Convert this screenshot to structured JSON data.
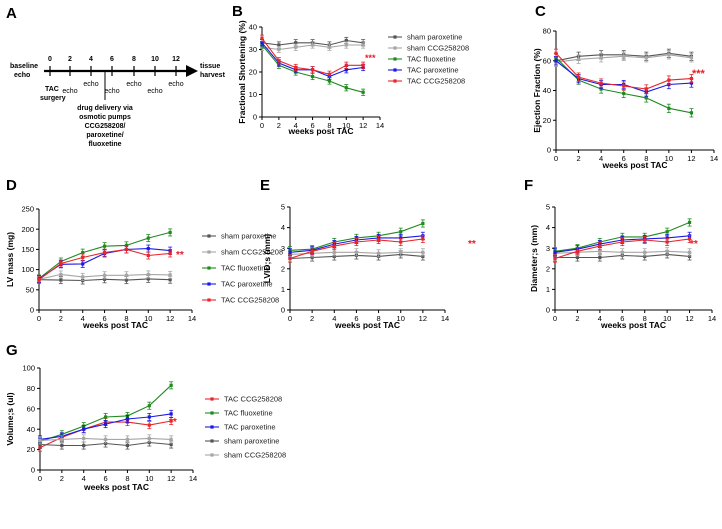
{
  "colors": {
    "sham_paroxetine": "#555555",
    "sham_CCG258208": "#a6a6a6",
    "TAC_fluoxetine": "#1f8a1f",
    "TAC_paroxetine": "#1a1ae6",
    "TAC_CCG258208": "#e8262b",
    "stars": "#e21f26"
  },
  "timeline": {
    "letter": "A",
    "start_label_line1": "baseline",
    "start_label_line2": "echo",
    "end_label_line1": "tissue",
    "end_label_line2": "harvest",
    "weeks": [
      "0",
      "2",
      "4",
      "6",
      "8",
      "10",
      "12"
    ],
    "tac_label_line1": "TAC",
    "tac_label_line2": "surgery",
    "echo_label": "echo",
    "drug_line1": "drug delivery via",
    "drug_line2": "osmotic pumps",
    "drug_line3": "CCG258208/",
    "drug_line4": "paroxetine/",
    "drug_line5": "fluoxetine"
  },
  "chart_data": [
    {
      "panel": "B",
      "type": "line",
      "ylabel": "Fractional Shortening (%)",
      "xlabel": "weeks post TAC",
      "x": [
        0,
        2,
        4,
        6,
        8,
        10,
        12
      ],
      "xticks": [
        "0",
        "2",
        "4",
        "6",
        "8",
        "10",
        "12",
        "14"
      ],
      "xlim": [
        0,
        14
      ],
      "ylim": [
        0,
        40
      ],
      "yticks": [
        "0",
        "10",
        "20",
        "30",
        "40"
      ],
      "stars": "***",
      "legend_position": "right",
      "series": [
        {
          "name": "sham paroxetine",
          "key": "sham_paroxetine",
          "values": [
            33,
            32,
            33,
            33,
            32,
            34,
            33
          ]
        },
        {
          "name": "sham CCG258208",
          "key": "sham_CCG258208",
          "values": [
            31,
            30,
            31,
            32,
            31,
            32,
            32
          ]
        },
        {
          "name": "TAC fluoxetine",
          "key": "TAC_fluoxetine",
          "values": [
            32,
            23,
            20,
            18,
            16,
            13,
            11
          ]
        },
        {
          "name": "TAC paroxetine",
          "key": "TAC_paroxetine",
          "values": [
            33,
            24,
            21,
            21,
            18,
            21,
            22
          ]
        },
        {
          "name": "TAC CCG258208",
          "key": "TAC_CCG258208",
          "values": [
            35,
            25,
            22,
            21,
            19,
            23,
            23
          ]
        }
      ]
    },
    {
      "panel": "C",
      "type": "line",
      "ylabel": "Ejection Fraction (%)",
      "xlabel": "weeks post TAC",
      "x": [
        0,
        2,
        4,
        6,
        8,
        10,
        12
      ],
      "xticks": [
        "0",
        "2",
        "4",
        "6",
        "8",
        "10",
        "12",
        "14"
      ],
      "xlim": [
        0,
        14
      ],
      "ylim": [
        0,
        80
      ],
      "yticks": [
        "0",
        "20",
        "40",
        "60",
        "80"
      ],
      "stars": "***",
      "legend_position": "none",
      "series": [
        {
          "name": "sham paroxetine",
          "key": "sham_paroxetine",
          "values": [
            60,
            63,
            64,
            64,
            63,
            65,
            63
          ]
        },
        {
          "name": "sham CCG258208",
          "key": "sham_CCG258208",
          "values": [
            59,
            61,
            62,
            63,
            62,
            64,
            62
          ]
        },
        {
          "name": "TAC fluoxetine",
          "key": "TAC_fluoxetine",
          "values": [
            62,
            47,
            41,
            38,
            35,
            28,
            25
          ]
        },
        {
          "name": "TAC paroxetine",
          "key": "TAC_paroxetine",
          "values": [
            60,
            48,
            44,
            44,
            39,
            44,
            45
          ]
        },
        {
          "name": "TAC CCG258208",
          "key": "TAC_CCG258208",
          "values": [
            65,
            49,
            45,
            43,
            41,
            47,
            48
          ]
        }
      ]
    },
    {
      "panel": "D",
      "type": "line",
      "ylabel": "LV mass (mg)",
      "xlabel": "weeks post TAC",
      "x": [
        0,
        2,
        4,
        6,
        8,
        10,
        12
      ],
      "xticks": [
        "0",
        "2",
        "4",
        "6",
        "8",
        "10",
        "12",
        "14"
      ],
      "xlim": [
        0,
        14
      ],
      "ylim": [
        0,
        250
      ],
      "yticks": [
        "0",
        "50",
        "100",
        "150",
        "200",
        "250"
      ],
      "stars": "**",
      "legend_position": "right",
      "series": [
        {
          "name": "sham paroxetine",
          "key": "sham_paroxetine",
          "values": [
            75,
            74,
            73,
            76,
            74,
            77,
            75
          ]
        },
        {
          "name": "sham CCG258208",
          "key": "sham_CCG258208",
          "values": [
            76,
            88,
            82,
            86,
            86,
            88,
            87
          ]
        },
        {
          "name": "TAC fluoxetine",
          "key": "TAC_fluoxetine",
          "values": [
            78,
            120,
            142,
            158,
            160,
            178,
            192
          ]
        },
        {
          "name": "TAC paroxetine",
          "key": "TAC_paroxetine",
          "values": [
            77,
            113,
            114,
            140,
            150,
            152,
            147
          ]
        },
        {
          "name": "TAC CCG258208",
          "key": "TAC_CCG258208",
          "values": [
            75,
            115,
            130,
            142,
            150,
            135,
            140
          ]
        }
      ]
    },
    {
      "panel": "E",
      "type": "line",
      "ylabel": "LVID;s (mm)",
      "xlabel": "weeks post TAC",
      "x": [
        0,
        2,
        4,
        6,
        8,
        10,
        12
      ],
      "xticks": [
        "0",
        "2",
        "4",
        "6",
        "8",
        "10",
        "12",
        "14"
      ],
      "xlim": [
        0,
        14
      ],
      "ylim": [
        0,
        5
      ],
      "yticks": [
        "0",
        "1",
        "2",
        "3",
        "4",
        "5"
      ],
      "stars": "**",
      "legend_position": "none",
      "series": [
        {
          "name": "sham paroxetine",
          "key": "sham_paroxetine",
          "values": [
            2.5,
            2.55,
            2.6,
            2.65,
            2.6,
            2.7,
            2.6
          ]
        },
        {
          "name": "sham CCG258208",
          "key": "sham_CCG258208",
          "values": [
            2.7,
            2.75,
            2.8,
            2.8,
            2.75,
            2.8,
            2.8
          ]
        },
        {
          "name": "TAC fluoxetine",
          "key": "TAC_fluoxetine",
          "values": [
            2.9,
            2.95,
            3.3,
            3.5,
            3.6,
            3.8,
            4.2
          ]
        },
        {
          "name": "TAC paroxetine",
          "key": "TAC_paroxetine",
          "values": [
            2.8,
            2.9,
            3.2,
            3.4,
            3.5,
            3.5,
            3.6
          ]
        },
        {
          "name": "TAC CCG258208",
          "key": "TAC_CCG258208",
          "values": [
            2.5,
            2.85,
            3.1,
            3.3,
            3.4,
            3.3,
            3.45
          ]
        }
      ]
    },
    {
      "panel": "F",
      "type": "line",
      "ylabel": "Diameter;s (mm)",
      "xlabel": "weeks post TAC",
      "x": [
        0,
        2,
        4,
        6,
        8,
        10,
        12
      ],
      "xticks": [
        "0",
        "2",
        "4",
        "6",
        "8",
        "10",
        "12",
        "14"
      ],
      "xlim": [
        0,
        14
      ],
      "ylim": [
        0,
        5
      ],
      "yticks": [
        "0",
        "1",
        "2",
        "3",
        "4",
        "5"
      ],
      "stars": "**",
      "legend_position": "none",
      "series": [
        {
          "name": "sham paroxetine",
          "key": "sham_paroxetine",
          "values": [
            2.55,
            2.55,
            2.55,
            2.65,
            2.6,
            2.7,
            2.6
          ]
        },
        {
          "name": "sham CCG258208",
          "key": "sham_CCG258208",
          "values": [
            2.75,
            2.8,
            2.85,
            2.8,
            2.8,
            2.85,
            2.8
          ]
        },
        {
          "name": "TAC fluoxetine",
          "key": "TAC_fluoxetine",
          "values": [
            2.85,
            3.0,
            3.3,
            3.55,
            3.55,
            3.8,
            4.25
          ]
        },
        {
          "name": "TAC paroxetine",
          "key": "TAC_paroxetine",
          "values": [
            2.8,
            2.95,
            3.2,
            3.4,
            3.45,
            3.5,
            3.6
          ]
        },
        {
          "name": "TAC CCG258208",
          "key": "TAC_CCG258208",
          "values": [
            2.5,
            2.85,
            3.1,
            3.3,
            3.4,
            3.3,
            3.45
          ]
        }
      ]
    },
    {
      "panel": "G",
      "type": "line",
      "ylabel": "Volume;s (ul)",
      "xlabel": "weeks post TAC",
      "x": [
        0,
        2,
        4,
        6,
        8,
        10,
        12
      ],
      "xticks": [
        "0",
        "2",
        "4",
        "6",
        "8",
        "10",
        "12",
        "14"
      ],
      "xlim": [
        0,
        14
      ],
      "ylim": [
        0,
        100
      ],
      "yticks": [
        "0",
        "20",
        "40",
        "60",
        "80",
        "100"
      ],
      "stars": "**",
      "legend_position": "right",
      "series": [
        {
          "name": "TAC CCG258208",
          "key": "TAC_CCG258208",
          "values": [
            22,
            32,
            40,
            47,
            47,
            44,
            48
          ]
        },
        {
          "name": "TAC fluoxetine",
          "key": "TAC_fluoxetine",
          "values": [
            28,
            35,
            43,
            52,
            53,
            63,
            83
          ]
        },
        {
          "name": "TAC paroxetine",
          "key": "TAC_paroxetine",
          "values": [
            30,
            33,
            40,
            45,
            50,
            52,
            55
          ]
        },
        {
          "name": "sham paroxetine",
          "key": "sham_paroxetine",
          "values": [
            25,
            24,
            24,
            26,
            24,
            27,
            25
          ]
        },
        {
          "name": "sham CCG258208",
          "key": "sham_CCG258208",
          "values": [
            29,
            30,
            31,
            30,
            30,
            31,
            30
          ]
        }
      ]
    }
  ]
}
